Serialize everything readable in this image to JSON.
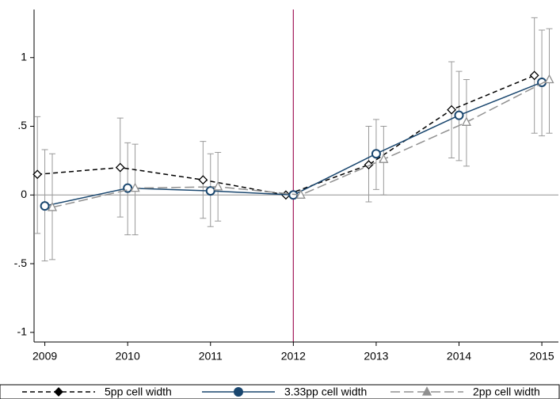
{
  "chart_data": {
    "type": "line",
    "x": [
      2009,
      2010,
      2011,
      2012,
      2013,
      2014,
      2015
    ],
    "series": [
      {
        "name": "5pp cell width",
        "color": "#000000",
        "dash": "6,4",
        "marker": "diamond",
        "values": [
          0.15,
          0.2,
          0.11,
          0,
          0.22,
          0.62,
          0.87
        ],
        "lower": [
          -0.28,
          -0.16,
          -0.17,
          null,
          -0.05,
          0.27,
          0.45
        ],
        "upper": [
          0.57,
          0.56,
          0.39,
          null,
          0.5,
          0.97,
          1.29
        ]
      },
      {
        "name": "3.33pp cell width",
        "color": "#1a476f",
        "dash": "none",
        "marker": "circle",
        "values": [
          -0.08,
          0.05,
          0.03,
          0,
          0.3,
          0.58,
          0.82
        ],
        "lower": [
          -0.48,
          -0.29,
          -0.23,
          null,
          0.04,
          0.25,
          0.43
        ],
        "upper": [
          0.33,
          0.38,
          0.3,
          null,
          0.55,
          0.9,
          1.2
        ]
      },
      {
        "name": "2pp cell width",
        "color": "#909090",
        "dash": "12,5",
        "marker": "triangle",
        "values": [
          -0.09,
          0.05,
          0.06,
          0,
          0.26,
          0.53,
          0.84
        ],
        "lower": [
          -0.47,
          -0.29,
          -0.19,
          null,
          0.0,
          0.21,
          0.45
        ],
        "upper": [
          0.3,
          0.37,
          0.31,
          null,
          0.5,
          0.84,
          1.21
        ]
      }
    ],
    "errorbar_color": "#9a9a9a",
    "xlim": [
      2008.87,
      2015.2
    ],
    "xticks": [
      2009,
      2010,
      2011,
      2012,
      2013,
      2014,
      2015
    ],
    "ylim": [
      -1.07,
      1.35
    ],
    "yticks": [
      {
        "value": -1,
        "label": "-1"
      },
      {
        "value": -0.5,
        "label": "-.5"
      },
      0,
      {
        "value": 0.5,
        "label": ".5"
      },
      1
    ],
    "hline": 0,
    "hline_color": "#909090",
    "vline": 2012,
    "vline_color": "#a3195b",
    "legend": "bottom"
  }
}
